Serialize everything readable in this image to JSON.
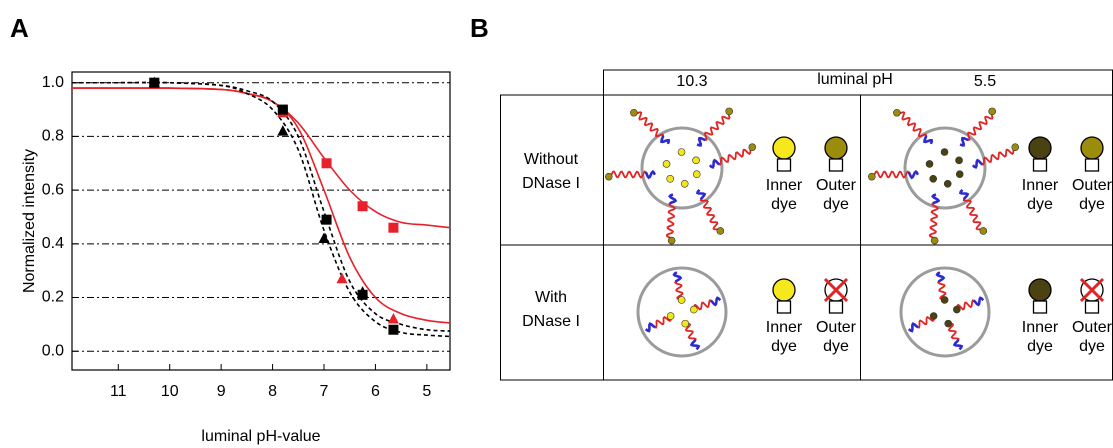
{
  "panel_labels": [
    "A",
    "B"
  ],
  "chart_data": {
    "type": "scatter",
    "xlabel": "luminal pH-value",
    "ylabel": "Normalized intensity",
    "xlim": [
      11.9,
      4.55
    ],
    "ylim": [
      -0.07,
      1.04
    ],
    "xticks": [
      11,
      10,
      9,
      8,
      7,
      6,
      5
    ],
    "yticks": [
      {
        "value": 0,
        "label": "0.0"
      },
      {
        "value": 0.2,
        "label": "0.2"
      },
      {
        "value": 0.4,
        "label": "0.4"
      },
      {
        "value": 0.6,
        "label": "0.6"
      },
      {
        "value": 0.8,
        "label": "0.8"
      },
      {
        "value": 1,
        "label": "1.0"
      }
    ],
    "grid": true,
    "series": [
      {
        "color": "#e8202a",
        "marker": "square",
        "x": [
          10.3,
          7.8,
          6.95,
          6.25,
          5.65
        ],
        "values": [
          1,
          0.89,
          0.7,
          0.54,
          0.46
        ]
      },
      {
        "color": "#e8202a",
        "marker": "triangle",
        "x": [
          10.3,
          7.8,
          6.65,
          5.65
        ],
        "values": [
          1,
          0.89,
          0.27,
          0.12
        ]
      },
      {
        "color": "#000000",
        "marker": "square",
        "x": [
          10.3,
          7.8,
          6.95,
          6.25,
          5.65
        ],
        "values": [
          1,
          0.9,
          0.49,
          0.21,
          0.08
        ]
      },
      {
        "color": "#000000",
        "marker": "triangle",
        "x": [
          10.3,
          7.8,
          7.0,
          6.25
        ],
        "values": [
          1,
          0.82,
          0.42,
          0.22
        ]
      }
    ],
    "fits": [
      {
        "color": "#e8202a",
        "dashed": false,
        "x": [
          11.9,
          11,
          10,
          9,
          8.5,
          8,
          7.5,
          7,
          6.5,
          6,
          5.5,
          5,
          4.55
        ],
        "values": [
          0.98,
          0.98,
          0.98,
          0.975,
          0.96,
          0.93,
          0.85,
          0.72,
          0.6,
          0.52,
          0.48,
          0.47,
          0.46
        ]
      },
      {
        "color": "#e8202a",
        "dashed": false,
        "x": [
          11.9,
          11,
          10,
          9,
          8.5,
          8,
          7.5,
          7,
          6.5,
          6,
          5.5,
          5,
          4.55
        ],
        "values": [
          0.98,
          0.98,
          0.98,
          0.975,
          0.96,
          0.93,
          0.83,
          0.6,
          0.35,
          0.2,
          0.14,
          0.115,
          0.105
        ]
      },
      {
        "color": "#000000",
        "dashed": true,
        "x": [
          11.9,
          11,
          10,
          9,
          8.5,
          8,
          7.5,
          7,
          6.5,
          6,
          5.5,
          5,
          4.55
        ],
        "values": [
          1,
          1,
          1,
          0.99,
          0.97,
          0.93,
          0.8,
          0.52,
          0.26,
          0.14,
          0.1,
          0.08,
          0.075
        ]
      },
      {
        "color": "#000000",
        "dashed": true,
        "x": [
          11.9,
          11,
          10,
          9,
          8.5,
          8,
          7.5,
          7,
          6.5,
          6,
          5.5,
          5,
          4.55
        ],
        "values": [
          1,
          1,
          1,
          0.99,
          0.96,
          0.9,
          0.75,
          0.45,
          0.22,
          0.11,
          0.07,
          0.06,
          0.055
        ]
      }
    ]
  },
  "table": {
    "header": [
      "10.3",
      "luminal pH",
      "5.5"
    ],
    "rows": [
      {
        "label": [
          "Without",
          "DNase I"
        ],
        "cells": [
          {
            "dot_color": "#f2e51a",
            "inner_color": "#f5e81c",
            "outer_color": "#9c8c0c",
            "outer_removed": false,
            "inner": [
              "Inner",
              "dye"
            ],
            "outer": [
              "Outer",
              "dye"
            ]
          },
          {
            "dot_color": "#4a4210",
            "inner_color": "#4a4210",
            "outer_color": "#9c8c0c",
            "outer_removed": false,
            "inner": [
              "Inner",
              "dye"
            ],
            "outer": [
              "Outer",
              "dye"
            ]
          }
        ]
      },
      {
        "label": [
          "With",
          "DNase I"
        ],
        "cells": [
          {
            "dot_color": "#f2e51a",
            "inner_color": "#f5e81c",
            "outer_color": "#ffffff",
            "outer_removed": true,
            "inner": [
              "Inner",
              "dye"
            ],
            "outer": [
              "Outer",
              "dye"
            ]
          },
          {
            "dot_color": "#4a4210",
            "inner_color": "#4a4210",
            "outer_color": "#ffffff",
            "outer_removed": true,
            "inner": [
              "Inner",
              "dye"
            ],
            "outer": [
              "Outer",
              "dye"
            ]
          }
        ]
      }
    ]
  }
}
